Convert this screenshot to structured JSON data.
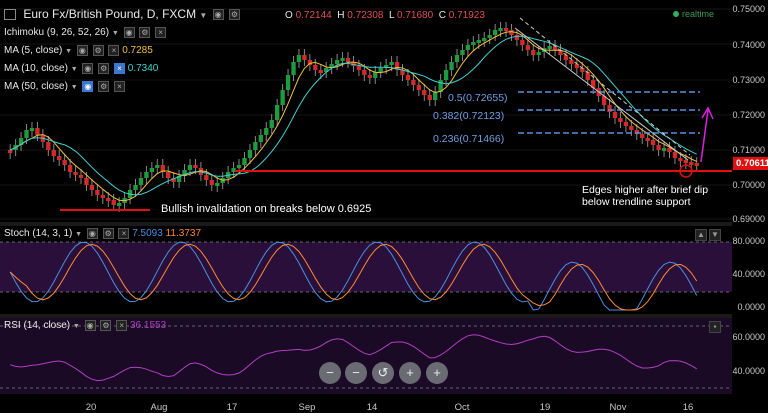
{
  "header": {
    "symbol": "Euro Fx/British Pound, D, FXCM",
    "ohlc": [
      {
        "k": "O",
        "v": "0.72144"
      },
      {
        "k": "H",
        "v": "0.72308"
      },
      {
        "k": "L",
        "v": "0.71680"
      },
      {
        "k": "C",
        "v": "0.71923"
      }
    ],
    "realtime": "realtime",
    "last_price": "0.70611"
  },
  "indicators": [
    {
      "label": "Ichimoku (9, 26, 52, 26)",
      "value": "",
      "color": "#ffffff"
    },
    {
      "label": "MA (5, close)",
      "value": "0.7285",
      "color": "#f0c040"
    },
    {
      "label": "MA (10, close)",
      "value": "0.7340",
      "color": "#40d0d0"
    },
    {
      "label": "MA (50, close)",
      "value": "",
      "color": "#ffffff"
    }
  ],
  "stoch": {
    "label": "Stoch (14, 3, 1)",
    "k": "7.5093",
    "d": "11.3737",
    "k_color": "#4a8fe0",
    "d_color": "#ff8a30"
  },
  "rsi": {
    "label": "RSI (14, close)",
    "value": "36.1553",
    "color": "#b040c0"
  },
  "main_axis": [
    "0.75000",
    "0.74000",
    "0.73000",
    "0.72000",
    "0.71000",
    "0.70000",
    "0.69000"
  ],
  "stoch_axis": [
    "80.0000",
    "40.0000",
    "0.0000"
  ],
  "rsi_axis": [
    "60.0000",
    "40.0000"
  ],
  "x_axis": [
    "20",
    "Aug",
    "17",
    "Sep",
    "14",
    "Oct",
    "19",
    "Nov",
    "16"
  ],
  "fib_levels": [
    "0.5(0.72655)",
    "0.382(0.72123)",
    "0.236(0.71466)"
  ],
  "annotations": {
    "invalidation": "Bullish invalidation on breaks below 0.6925",
    "edges": [
      "Edges higher after brief dip",
      "below trendline support"
    ]
  },
  "nav_buttons": [
    "−",
    "−",
    "↺",
    "+",
    "+"
  ],
  "colors": {
    "up": "#1e9b3c",
    "down": "#d42a2a",
    "support": "#e01010",
    "arrow": "#e020e0",
    "fib": "#5b8fdd"
  }
}
